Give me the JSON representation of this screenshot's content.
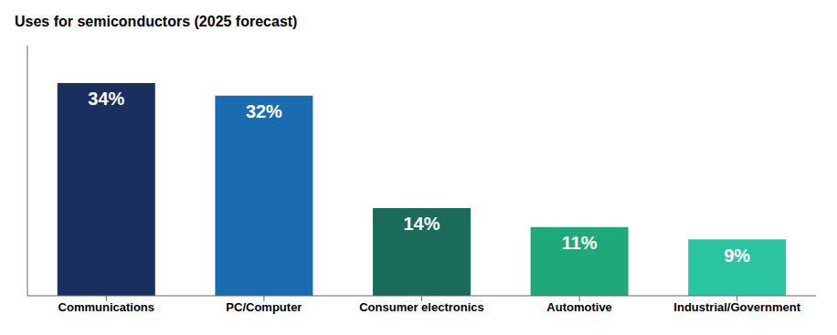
{
  "chart_data": {
    "type": "bar",
    "title": "Uses for semiconductors (2025 forecast)",
    "categories": [
      "Communications",
      "PC/Computer",
      "Consumer electronics",
      "Automotive",
      "Industrial/Government"
    ],
    "values": [
      34,
      32,
      14,
      11,
      9
    ],
    "value_labels": [
      "34%",
      "32%",
      "14%",
      "11%",
      "9%"
    ],
    "colors": [
      "#1a2f5e",
      "#1b6bb0",
      "#1a6b5a",
      "#1fa87a",
      "#2ac4a0"
    ],
    "ylim": [
      0,
      40
    ],
    "grid": false,
    "data_labels": true,
    "tick_labels": "x"
  }
}
